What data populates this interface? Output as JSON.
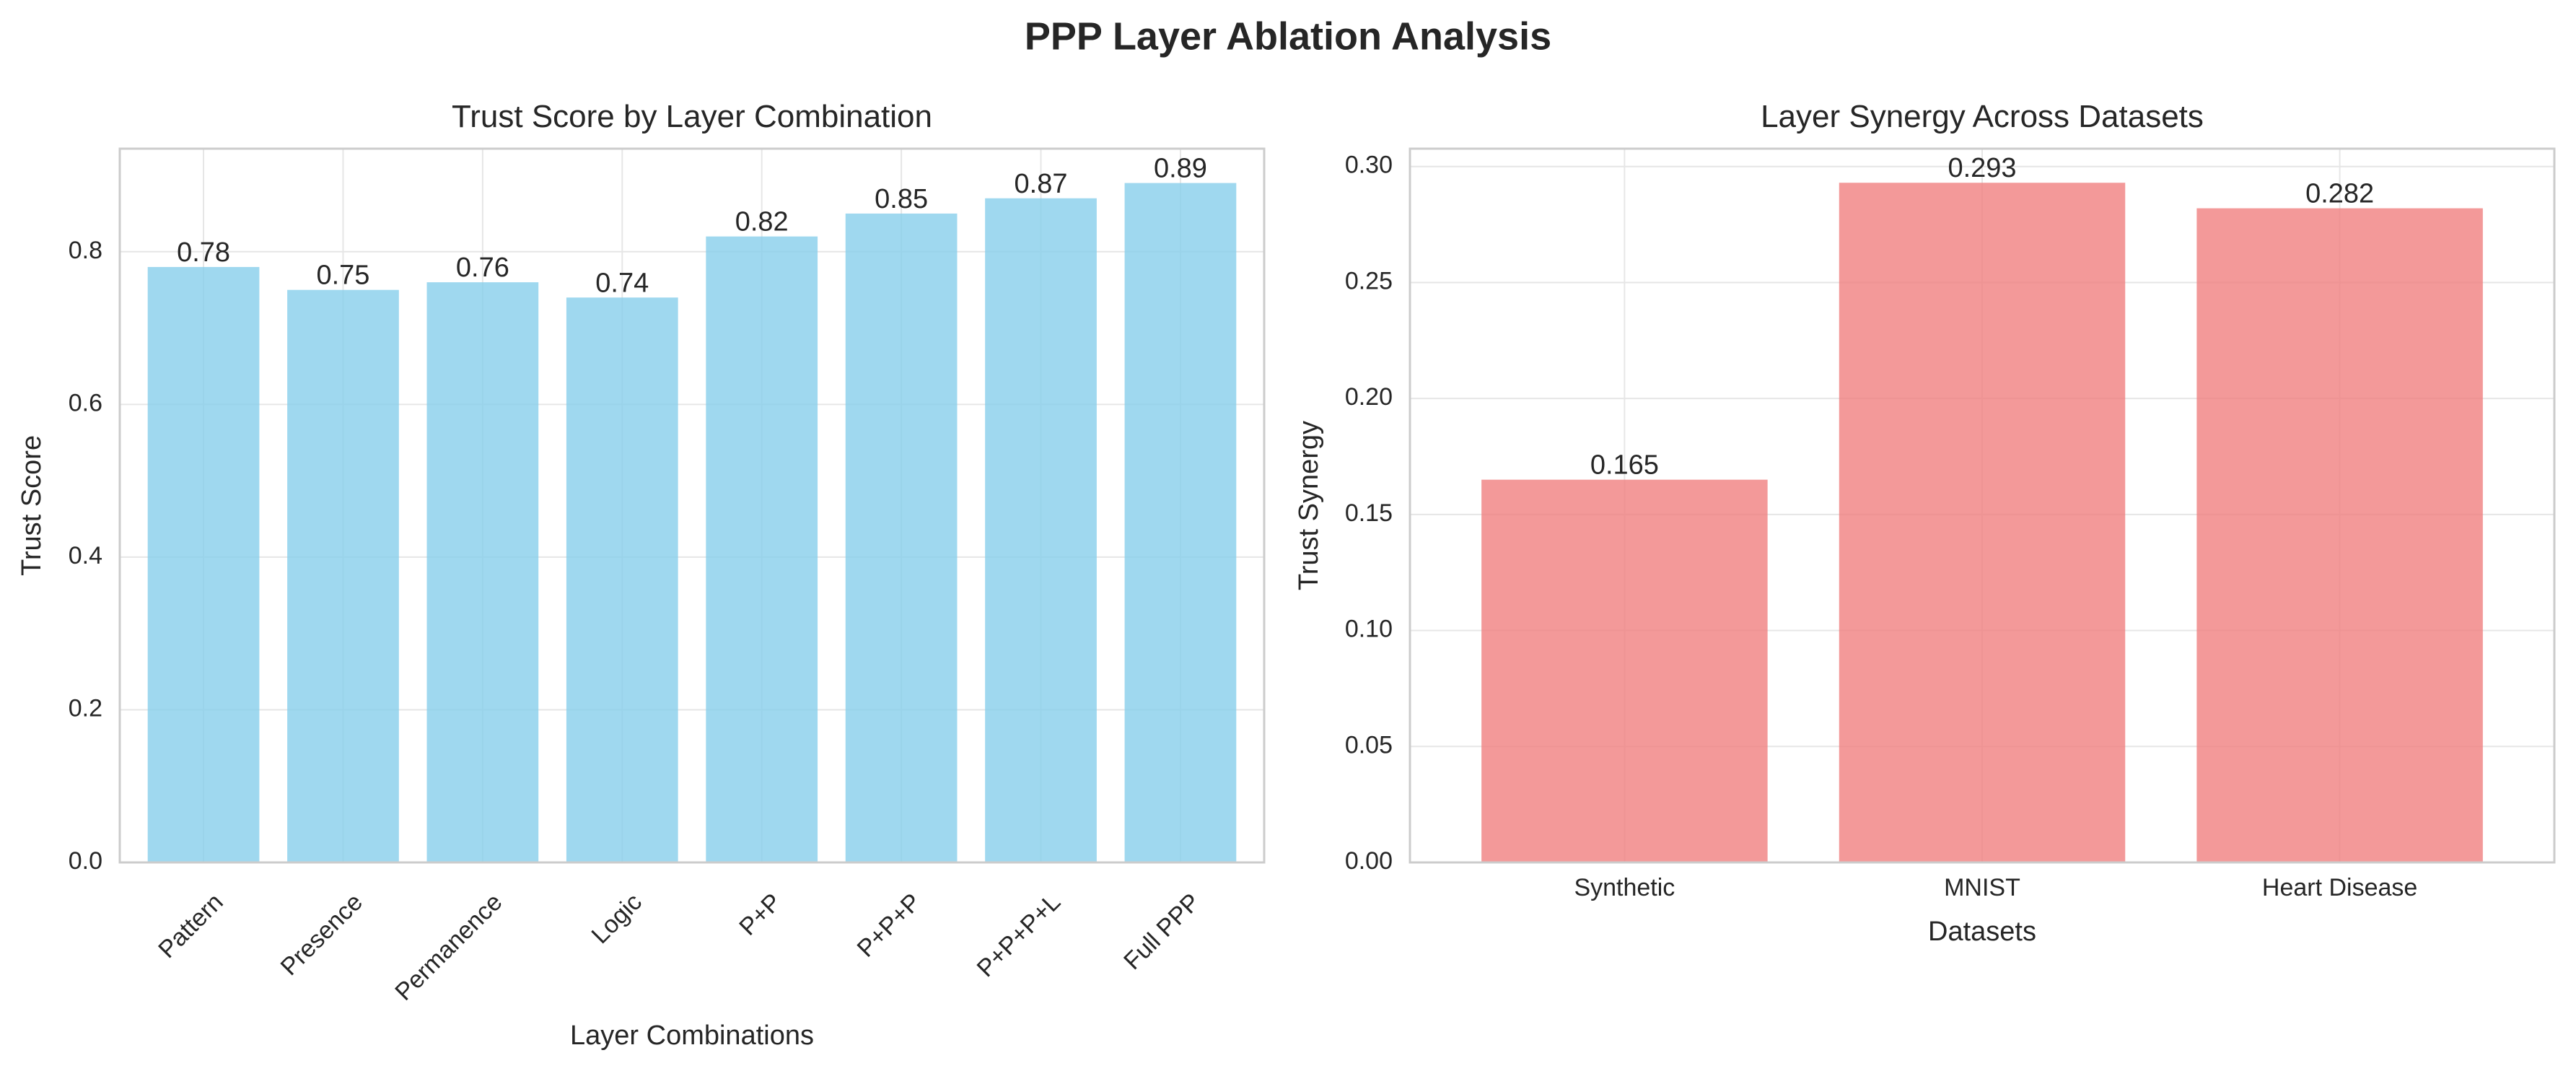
{
  "figure": {
    "title": "PPP Layer Ablation Analysis"
  },
  "chart_data": [
    {
      "type": "bar",
      "title": "Trust Score by Layer Combination",
      "xlabel": "Layer Combinations",
      "ylabel": "Trust Score",
      "categories": [
        "Pattern",
        "Presence",
        "Permanence",
        "Logic",
        "P+P",
        "P+P+P",
        "P+P+P+L",
        "Full PPP"
      ],
      "values": [
        0.78,
        0.75,
        0.76,
        0.74,
        0.82,
        0.85,
        0.87,
        0.89
      ],
      "value_labels": [
        "0.78",
        "0.75",
        "0.76",
        "0.74",
        "0.82",
        "0.85",
        "0.87",
        "0.89"
      ],
      "ylim": [
        0,
        0.935
      ],
      "yticks": [
        0.0,
        0.2,
        0.4,
        0.6,
        0.8
      ],
      "ytick_labels": [
        "0.0",
        "0.2",
        "0.4",
        "0.6",
        "0.8"
      ],
      "xtick_rotation": "45 degrees",
      "grid": true,
      "color": "#87CEEB"
    },
    {
      "type": "bar",
      "title": "Layer Synergy Across Datasets",
      "xlabel": "Datasets",
      "ylabel": "Trust Synergy",
      "categories": [
        "Synthetic",
        "MNIST",
        "Heart Disease"
      ],
      "values": [
        0.165,
        0.293,
        0.282
      ],
      "value_labels": [
        "0.165",
        "0.293",
        "0.282"
      ],
      "ylim": [
        0,
        0.3077
      ],
      "yticks": [
        0.0,
        0.05,
        0.1,
        0.15,
        0.2,
        0.25,
        0.3
      ],
      "ytick_labels": [
        "0.00",
        "0.05",
        "0.10",
        "0.15",
        "0.20",
        "0.25",
        "0.30"
      ],
      "grid": true,
      "color": "#F08080"
    }
  ]
}
